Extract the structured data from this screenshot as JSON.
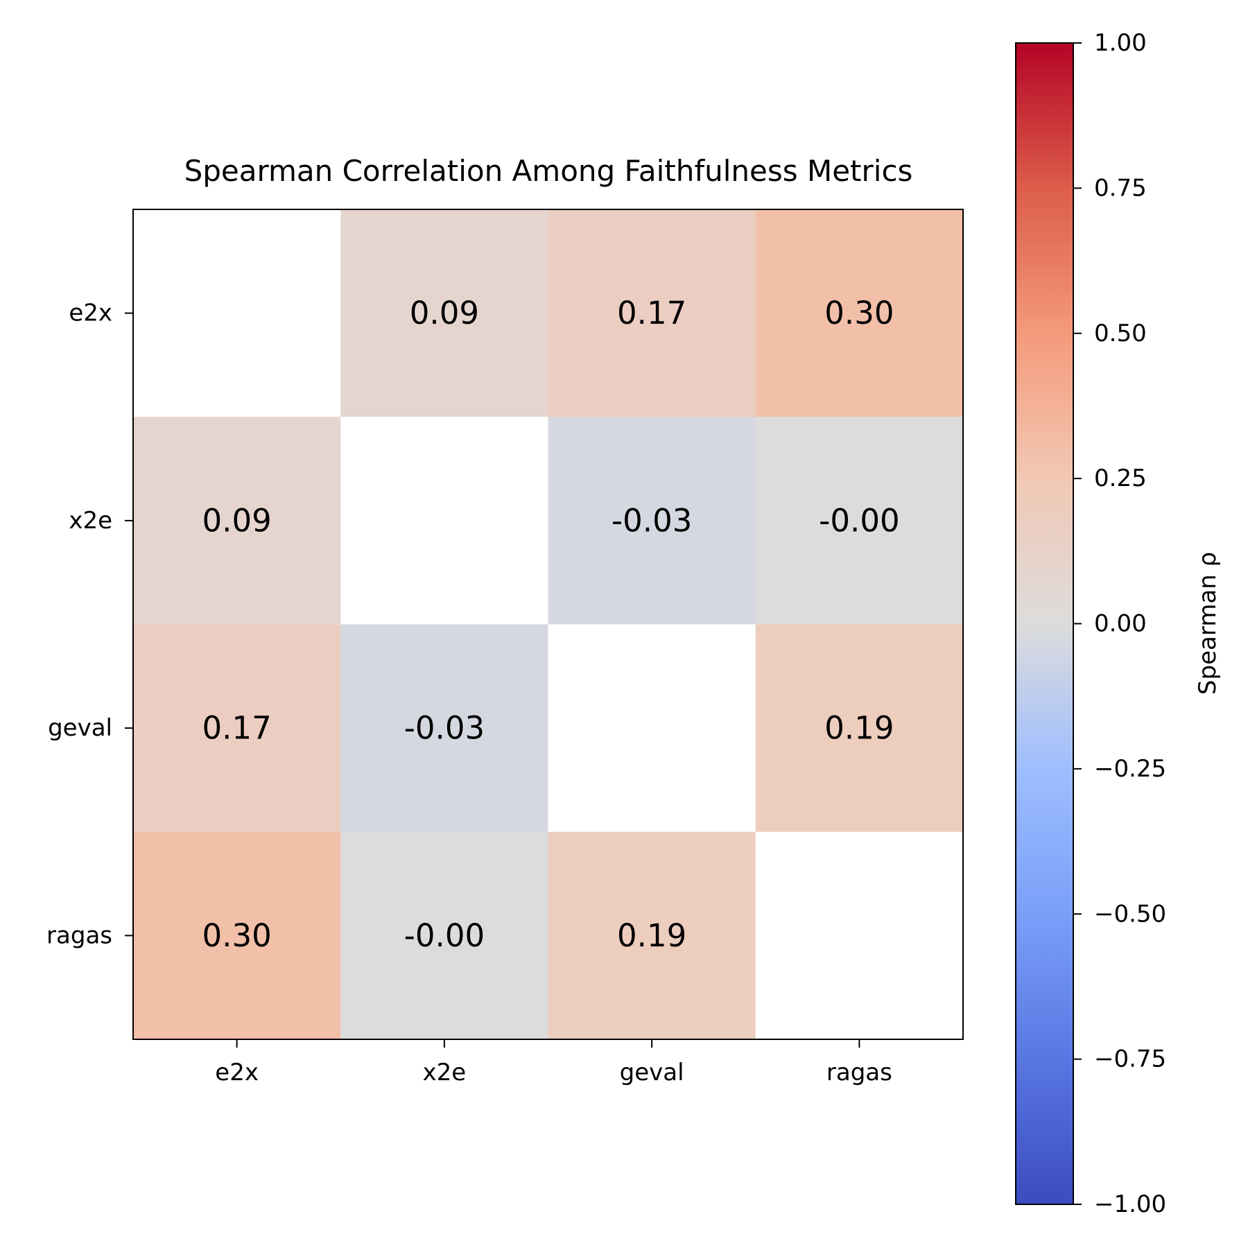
{
  "chart_data": {
    "type": "heatmap",
    "title": "Spearman Correlation Among Faithfulness Metrics",
    "rows": [
      "e2x",
      "x2e",
      "geval",
      "ragas"
    ],
    "columns": [
      "e2x",
      "x2e",
      "geval",
      "ragas"
    ],
    "values": [
      [
        null,
        0.09,
        0.17,
        0.3
      ],
      [
        0.09,
        null,
        -0.03,
        -0.0
      ],
      [
        0.17,
        -0.03,
        null,
        0.19
      ],
      [
        0.3,
        -0.0,
        0.19,
        null
      ]
    ],
    "cell_labels": [
      [
        "",
        "0.09",
        "0.17",
        "0.30"
      ],
      [
        "0.09",
        "",
        "-0.03",
        "-0.00"
      ],
      [
        "0.17",
        "-0.03",
        "",
        "0.19"
      ],
      [
        "0.30",
        "-0.00",
        "0.19",
        ""
      ]
    ],
    "colormap": "coolwarm",
    "colorbar": {
      "label": "Spearman ρ",
      "range": [
        -1.0,
        1.0
      ],
      "ticks": [
        1.0,
        0.75,
        0.5,
        0.25,
        0.0,
        -0.25,
        -0.5,
        -0.75,
        -1.0
      ],
      "tick_labels": [
        "1.00",
        "0.75",
        "0.50",
        "0.25",
        "0.00",
        "−0.25",
        "−0.50",
        "−0.75",
        "−1.00"
      ],
      "position": "right"
    },
    "grid": false
  }
}
